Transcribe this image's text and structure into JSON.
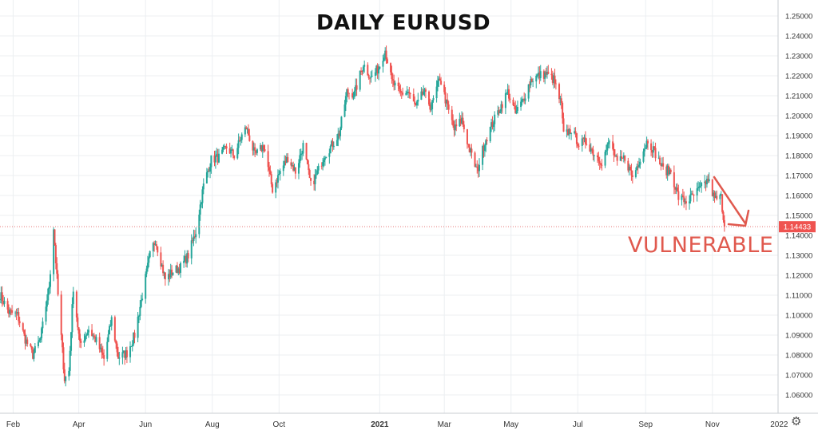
{
  "chart_data": {
    "type": "candlestick",
    "title": "DAILY EURUSD",
    "xlabel": "",
    "ylabel": "",
    "ylim": [
      1.055,
      1.255
    ],
    "grid": true,
    "y_ticks": [
      "1.25000",
      "1.24000",
      "1.23000",
      "1.22000",
      "1.21000",
      "1.20000",
      "1.19000",
      "1.18000",
      "1.17000",
      "1.16000",
      "1.15000",
      "1.14000",
      "1.13000",
      "1.12000",
      "1.11000",
      "1.10000",
      "1.09000",
      "1.08000",
      "1.07000",
      "1.06000"
    ],
    "x_ticks": [
      "Feb",
      "Apr",
      "Jun",
      "Aug",
      "Oct",
      "2021",
      "Mar",
      "May",
      "Jul",
      "Sep",
      "Nov",
      "2022"
    ],
    "x_range": [
      "2020-01-20",
      "2021-12-31"
    ],
    "last_price_label": "1.14433",
    "last_price": 1.14433,
    "annotation": "VULNERABLE",
    "colors": {
      "up": "#26a69a",
      "down": "#ef5350",
      "annotation": "#e0594e",
      "grid": "#eceff2",
      "price_line": "#e57373"
    },
    "close_path": [
      [
        "2020-01-20",
        1.1105
      ],
      [
        "2020-01-28",
        1.1015
      ],
      [
        "2020-02-05",
        1.1
      ],
      [
        "2020-02-12",
        1.088
      ],
      [
        "2020-02-19",
        1.08
      ],
      [
        "2020-02-26",
        1.088
      ],
      [
        "2020-03-05",
        1.115
      ],
      [
        "2020-03-09",
        1.144
      ],
      [
        "2020-03-13",
        1.11
      ],
      [
        "2020-03-19",
        1.068
      ],
      [
        "2020-03-23",
        1.072
      ],
      [
        "2020-03-27",
        1.114
      ],
      [
        "2020-04-02",
        1.085
      ],
      [
        "2020-04-10",
        1.093
      ],
      [
        "2020-04-17",
        1.087
      ],
      [
        "2020-04-24",
        1.078
      ],
      [
        "2020-05-01",
        1.098
      ],
      [
        "2020-05-07",
        1.079
      ],
      [
        "2020-05-15",
        1.081
      ],
      [
        "2020-05-22",
        1.09
      ],
      [
        "2020-05-29",
        1.11
      ],
      [
        "2020-06-05",
        1.13
      ],
      [
        "2020-06-10",
        1.138
      ],
      [
        "2020-06-19",
        1.118
      ],
      [
        "2020-06-26",
        1.122
      ],
      [
        "2020-07-03",
        1.124
      ],
      [
        "2020-07-10",
        1.13
      ],
      [
        "2020-07-17",
        1.142
      ],
      [
        "2020-07-24",
        1.165
      ],
      [
        "2020-07-31",
        1.178
      ],
      [
        "2020-08-07",
        1.179
      ],
      [
        "2020-08-14",
        1.184
      ],
      [
        "2020-08-21",
        1.18
      ],
      [
        "2020-08-28",
        1.19
      ],
      [
        "2020-09-01",
        1.194
      ],
      [
        "2020-09-09",
        1.18
      ],
      [
        "2020-09-17",
        1.185
      ],
      [
        "2020-09-25",
        1.163
      ],
      [
        "2020-10-02",
        1.172
      ],
      [
        "2020-10-09",
        1.179
      ],
      [
        "2020-10-16",
        1.172
      ],
      [
        "2020-10-23",
        1.185
      ],
      [
        "2020-10-30",
        1.165
      ],
      [
        "2020-11-04",
        1.17
      ],
      [
        "2020-11-11",
        1.18
      ],
      [
        "2020-11-18",
        1.185
      ],
      [
        "2020-11-25",
        1.191
      ],
      [
        "2020-12-02",
        1.212
      ],
      [
        "2020-12-09",
        1.211
      ],
      [
        "2020-12-17",
        1.226
      ],
      [
        "2020-12-24",
        1.219
      ],
      [
        "2020-12-31",
        1.224
      ],
      [
        "2021-01-06",
        1.233
      ],
      [
        "2021-01-12",
        1.217
      ],
      [
        "2021-01-20",
        1.211
      ],
      [
        "2021-01-27",
        1.212
      ],
      [
        "2021-02-03",
        1.204
      ],
      [
        "2021-02-10",
        1.212
      ],
      [
        "2021-02-17",
        1.204
      ],
      [
        "2021-02-25",
        1.219
      ],
      [
        "2021-03-03",
        1.206
      ],
      [
        "2021-03-10",
        1.193
      ],
      [
        "2021-03-17",
        1.198
      ],
      [
        "2021-03-24",
        1.183
      ],
      [
        "2021-03-31",
        1.172
      ],
      [
        "2021-04-07",
        1.187
      ],
      [
        "2021-04-14",
        1.196
      ],
      [
        "2021-04-21",
        1.204
      ],
      [
        "2021-04-28",
        1.212
      ],
      [
        "2021-05-05",
        1.201
      ],
      [
        "2021-05-12",
        1.208
      ],
      [
        "2021-05-19",
        1.218
      ],
      [
        "2021-05-26",
        1.22
      ],
      [
        "2021-06-02",
        1.221
      ],
      [
        "2021-06-09",
        1.218
      ],
      [
        "2021-06-16",
        1.205
      ],
      [
        "2021-06-18",
        1.19
      ],
      [
        "2021-06-25",
        1.193
      ],
      [
        "2021-07-02",
        1.186
      ],
      [
        "2021-07-09",
        1.187
      ],
      [
        "2021-07-16",
        1.181
      ],
      [
        "2021-07-23",
        1.177
      ],
      [
        "2021-07-30",
        1.187
      ],
      [
        "2021-08-06",
        1.176
      ],
      [
        "2021-08-13",
        1.179
      ],
      [
        "2021-08-20",
        1.169
      ],
      [
        "2021-08-27",
        1.179
      ],
      [
        "2021-09-03",
        1.188
      ],
      [
        "2021-09-10",
        1.181
      ],
      [
        "2021-09-17",
        1.173
      ],
      [
        "2021-09-24",
        1.172
      ],
      [
        "2021-10-01",
        1.159
      ],
      [
        "2021-10-08",
        1.157
      ],
      [
        "2021-10-15",
        1.16
      ],
      [
        "2021-10-22",
        1.164
      ],
      [
        "2021-10-28",
        1.168
      ],
      [
        "2021-11-03",
        1.158
      ],
      [
        "2021-11-09",
        1.159
      ],
      [
        "2021-11-12",
        1.144
      ]
    ]
  }
}
